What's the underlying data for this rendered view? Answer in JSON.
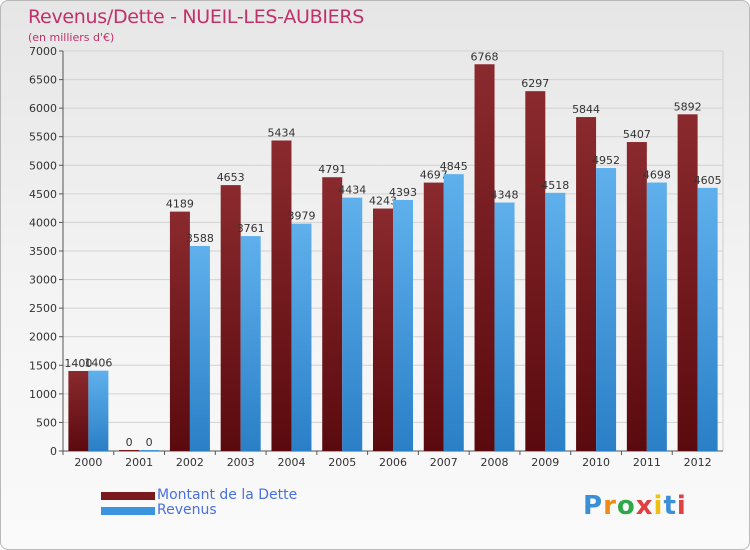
{
  "title": "Revenus/Dette - NUEIL-LES-AUBIERS",
  "subtitle": "(en milliers d'€)",
  "logo": {
    "text": "Proxiti",
    "colors": [
      "#3a8fd6",
      "#f08a1a",
      "#2ea84a",
      "#e04040",
      "#f0c010",
      "#3a8fd6",
      "#e04040"
    ]
  },
  "chart_data": {
    "type": "bar",
    "categories": [
      "2000",
      "2001",
      "2002",
      "2003",
      "2004",
      "2005",
      "2006",
      "2007",
      "2008",
      "2009",
      "2010",
      "2011",
      "2012"
    ],
    "series": [
      {
        "name": "Montant de la Dette",
        "color": "#7a1a1e",
        "values": [
          1400,
          0,
          4189,
          4653,
          5434,
          4791,
          4243,
          4697,
          6768,
          6297,
          5844,
          5407,
          5892
        ]
      },
      {
        "name": "Revenus",
        "color": "#3a95de",
        "values": [
          1406,
          0,
          3588,
          3761,
          3979,
          4434,
          4393,
          4845,
          4348,
          4518,
          4952,
          4698,
          4605
        ]
      }
    ],
    "data_labels": [
      [
        "1400",
        "0",
        "4189",
        "4653",
        "5434",
        "4791",
        "4243",
        "4697",
        "6768",
        "6297",
        "5844",
        "5407",
        "5892"
      ],
      [
        "1406",
        "0",
        "3588",
        "3761",
        "3979",
        "4434",
        "4393",
        "4845",
        "4348",
        "4518",
        "4952",
        "4698",
        "4605"
      ]
    ],
    "ylim": [
      0,
      7000
    ],
    "yticks": [
      0,
      500,
      1000,
      1500,
      2000,
      2500,
      3000,
      3500,
      4000,
      4500,
      5000,
      5500,
      6000,
      6500,
      7000
    ],
    "grid": true,
    "legend_position": "bottom-left"
  }
}
